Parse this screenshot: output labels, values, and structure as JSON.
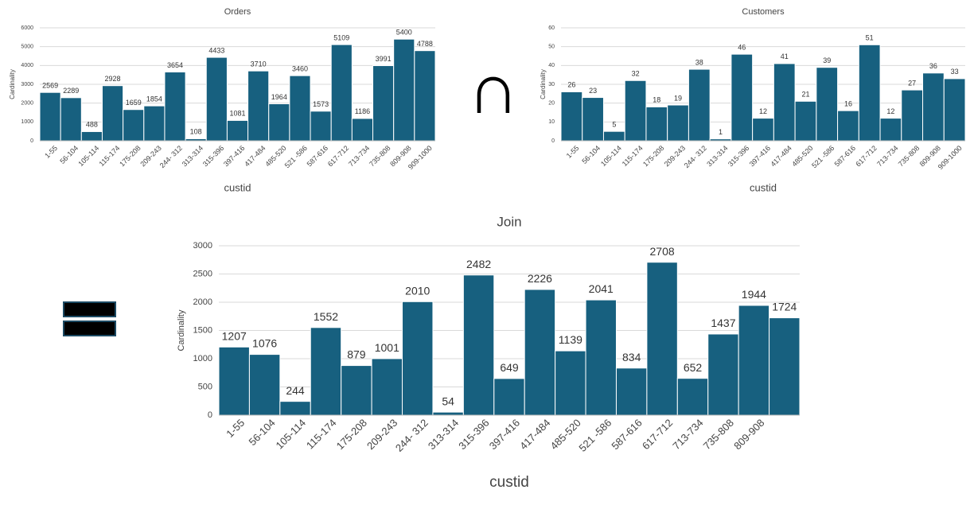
{
  "symbol": "∩",
  "chart_data": [
    {
      "type": "bar",
      "title": "Orders",
      "x_label": "custid",
      "y_label": "Cardinality",
      "color": "#17607f",
      "grid": true,
      "categories": [
        "1-55",
        "56-104",
        "105-114",
        "115-174",
        "175-208",
        "209-243",
        "244- 312",
        "313-314",
        "315-396",
        "397-416",
        "417-484",
        "485-520",
        "521 -586",
        "587-616",
        "617-712",
        "713-734",
        "735-808",
        "809-908",
        "909-1000"
      ],
      "values": [
        2569,
        2289,
        488,
        2928,
        1659,
        1854,
        3654,
        108,
        4433,
        1081,
        3710,
        1964,
        3460,
        1573,
        5109,
        1186,
        3991,
        5400,
        4788
      ],
      "ylim": [
        0,
        6000
      ],
      "yticks": [
        0,
        1000,
        2000,
        3000,
        4000,
        5000,
        6000
      ]
    },
    {
      "type": "bar",
      "title": "Customers",
      "x_label": "custid",
      "y_label": "Cardinality",
      "color": "#17607f",
      "grid": true,
      "categories": [
        "1-55",
        "56-104",
        "105-114",
        "115-174",
        "175-208",
        "209-243",
        "244- 312",
        "313-314",
        "315-396",
        "397-416",
        "417-484",
        "485-520",
        "521 -586",
        "587-616",
        "617-712",
        "713-734",
        "735-808",
        "809-908",
        "909-1000"
      ],
      "values": [
        26,
        23,
        5,
        32,
        18,
        19,
        38,
        1,
        46,
        12,
        41,
        21,
        39,
        16,
        51,
        12,
        27,
        36,
        33
      ],
      "ylim": [
        0,
        60
      ],
      "yticks": [
        0,
        10,
        20,
        30,
        40,
        50,
        60
      ]
    },
    {
      "type": "bar",
      "title": "Join",
      "x_label": "custid",
      "y_label": "Cardinality",
      "color": "#17607f",
      "grid": true,
      "categories": [
        "1-55",
        "56-104",
        "105-114",
        "115-174",
        "175-208",
        "209-243",
        "244- 312",
        "313-314",
        "315-396",
        "397-416",
        "417-484",
        "485-520",
        "521 -586",
        "587-616",
        "617-712",
        "713-734",
        "735-808",
        "809-908",
        null
      ],
      "values": [
        1207,
        1076,
        244,
        1552,
        879,
        1001,
        2010,
        54,
        2482,
        649,
        2226,
        1139,
        2041,
        834,
        2708,
        652,
        1437,
        1944,
        1724
      ],
      "ylim": [
        0,
        3000
      ],
      "yticks": [
        0,
        500,
        1000,
        1500,
        2000,
        2500,
        3000
      ]
    }
  ]
}
